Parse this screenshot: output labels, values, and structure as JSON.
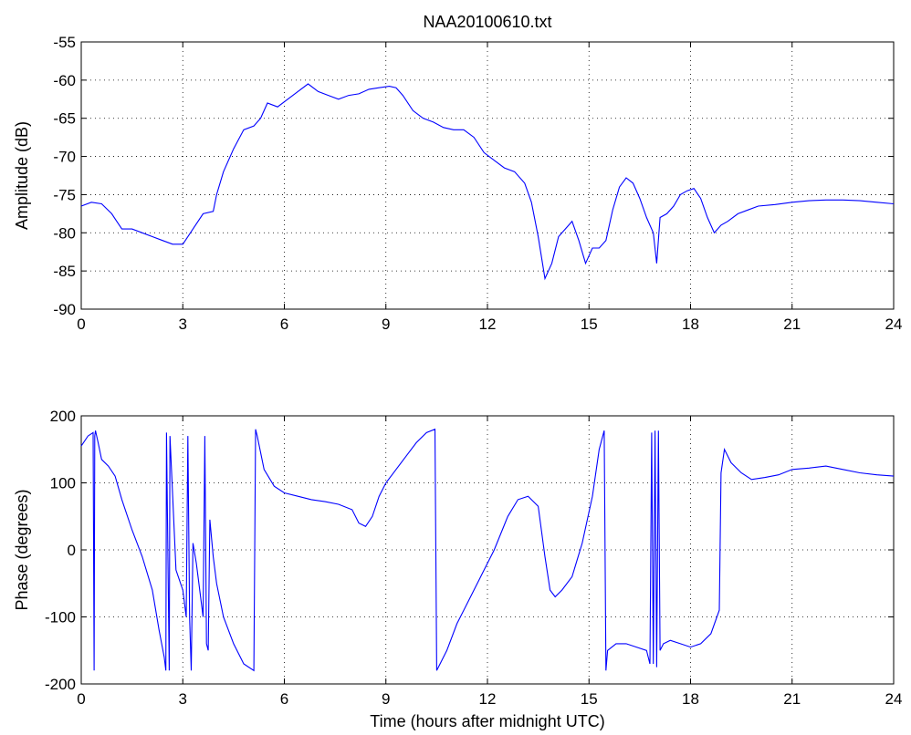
{
  "chart_data": [
    {
      "type": "line",
      "title": "NAA20100610.txt",
      "xlabel": "",
      "ylabel": "Amplitude (dB)",
      "xlim": [
        0,
        24
      ],
      "ylim": [
        -90,
        -55
      ],
      "xticks": [
        0,
        3,
        6,
        9,
        12,
        15,
        18,
        21,
        24
      ],
      "yticks": [
        -90,
        -85,
        -80,
        -75,
        -70,
        -65,
        -60,
        -55
      ],
      "grid": true,
      "color": "#0000ff",
      "series": [
        {
          "x": [
            0,
            0.3,
            0.6,
            0.9,
            1.2,
            1.5,
            1.8,
            2.1,
            2.4,
            2.7,
            3.0,
            3.3,
            3.6,
            3.9,
            4.0,
            4.2,
            4.5,
            4.8,
            5.1,
            5.3,
            5.5,
            5.8,
            6.1,
            6.4,
            6.7,
            7.0,
            7.3,
            7.6,
            7.9,
            8.2,
            8.5,
            8.8,
            9.1,
            9.3,
            9.5,
            9.8,
            10.1,
            10.4,
            10.7,
            11.0,
            11.3,
            11.6,
            11.9,
            12.2,
            12.5,
            12.8,
            13.1,
            13.3,
            13.5,
            13.7,
            13.9,
            14.1,
            14.3,
            14.5,
            14.7,
            14.9,
            15.1,
            15.3,
            15.5,
            15.7,
            15.9,
            16.1,
            16.3,
            16.5,
            16.7,
            16.9,
            17.0,
            17.1,
            17.3,
            17.5,
            17.7,
            17.9,
            18.1,
            18.3,
            18.5,
            18.7,
            18.9,
            19.1,
            19.4,
            19.7,
            20.0,
            20.5,
            21.0,
            21.5,
            22.0,
            22.5,
            23.0,
            23.5,
            24.0
          ],
          "y": [
            -76.5,
            -76,
            -76.2,
            -77.5,
            -79.5,
            -79.5,
            -80,
            -80.5,
            -81,
            -81.5,
            -81.5,
            -79.5,
            -77.5,
            -77.2,
            -75,
            -72,
            -69,
            -66.5,
            -66,
            -65,
            -63,
            -63.5,
            -62.5,
            -61.5,
            -60.5,
            -61.5,
            -62,
            -62.5,
            -62,
            -61.8,
            -61.2,
            -61,
            -60.8,
            -61,
            -62,
            -64,
            -65,
            -65.5,
            -66.2,
            -66.5,
            -66.5,
            -67.5,
            -69.5,
            -70.5,
            -71.5,
            -72,
            -73.5,
            -76,
            -80.5,
            -86,
            -84,
            -80.5,
            -79.5,
            -78.5,
            -81,
            -84,
            -82,
            -82,
            -81,
            -77,
            -74,
            -72.8,
            -73.5,
            -75.5,
            -78,
            -80,
            -84,
            -78,
            -77.5,
            -76.5,
            -75,
            -74.5,
            -74.2,
            -75.5,
            -78,
            -80,
            -79,
            -78.5,
            -77.5,
            -77,
            -76.5,
            -76.3,
            -76,
            -75.8,
            -75.7,
            -75.7,
            -75.8,
            -76,
            -76.2
          ]
        }
      ]
    },
    {
      "type": "line",
      "title": "",
      "xlabel": "Time (hours after midnight UTC)",
      "ylabel": "Phase (degrees)",
      "xlim": [
        0,
        24
      ],
      "ylim": [
        -200,
        200
      ],
      "xticks": [
        0,
        3,
        6,
        9,
        12,
        15,
        18,
        21,
        24
      ],
      "yticks": [
        -200,
        -100,
        0,
        100,
        200
      ],
      "grid": true,
      "color": "#0000ff",
      "series": [
        {
          "x": [
            0,
            0.2,
            0.35,
            0.38,
            0.4,
            0.42,
            0.5,
            0.6,
            0.8,
            1.0,
            1.2,
            1.5,
            1.8,
            2.1,
            2.3,
            2.45,
            2.5,
            2.52,
            2.6,
            2.62,
            2.8,
            3.0,
            3.1,
            3.15,
            3.2,
            3.25,
            3.3,
            3.4,
            3.5,
            3.6,
            3.65,
            3.7,
            3.75,
            3.8,
            3.9,
            4.0,
            4.2,
            4.5,
            4.8,
            5.1,
            5.15,
            5.2,
            5.4,
            5.7,
            6.0,
            6.4,
            6.8,
            7.2,
            7.6,
            8.0,
            8.2,
            8.4,
            8.6,
            8.8,
            9.0,
            9.3,
            9.6,
            9.9,
            10.2,
            10.45,
            10.5,
            10.6,
            10.8,
            11.1,
            11.4,
            11.8,
            12.2,
            12.6,
            12.9,
            13.2,
            13.5,
            13.7,
            13.85,
            14.0,
            14.2,
            14.5,
            14.8,
            15.1,
            15.3,
            15.45,
            15.5,
            15.55,
            15.8,
            16.1,
            16.4,
            16.7,
            16.8,
            16.85,
            16.9,
            16.95,
            17.0,
            17.05,
            17.1,
            17.2,
            17.4,
            17.7,
            18.0,
            18.3,
            18.6,
            18.85,
            18.9,
            19.0,
            19.2,
            19.5,
            19.8,
            20.2,
            20.6,
            21.0,
            21.5,
            22.0,
            22.5,
            23.0,
            23.5,
            24.0
          ],
          "y": [
            155,
            170,
            175,
            -180,
            170,
            178,
            160,
            135,
            125,
            110,
            75,
            30,
            -10,
            -60,
            -120,
            -160,
            -180,
            175,
            -180,
            170,
            -30,
            -60,
            -100,
            170,
            -100,
            -180,
            10,
            -20,
            -60,
            -100,
            170,
            -140,
            -150,
            45,
            -10,
            -50,
            -100,
            -140,
            -170,
            -180,
            180,
            170,
            120,
            95,
            85,
            80,
            75,
            72,
            68,
            60,
            40,
            35,
            50,
            80,
            100,
            120,
            140,
            160,
            175,
            180,
            -180,
            -170,
            -150,
            -110,
            -80,
            -40,
            0,
            50,
            75,
            80,
            65,
            -10,
            -60,
            -70,
            -60,
            -40,
            10,
            80,
            150,
            178,
            -180,
            -150,
            -140,
            -140,
            -145,
            -150,
            -170,
            175,
            -170,
            178,
            -175,
            178,
            -150,
            -140,
            -135,
            -140,
            -145,
            -140,
            -125,
            -90,
            115,
            150,
            130,
            115,
            105,
            108,
            112,
            120,
            122,
            125,
            120,
            115,
            112,
            110
          ]
        }
      ]
    }
  ]
}
